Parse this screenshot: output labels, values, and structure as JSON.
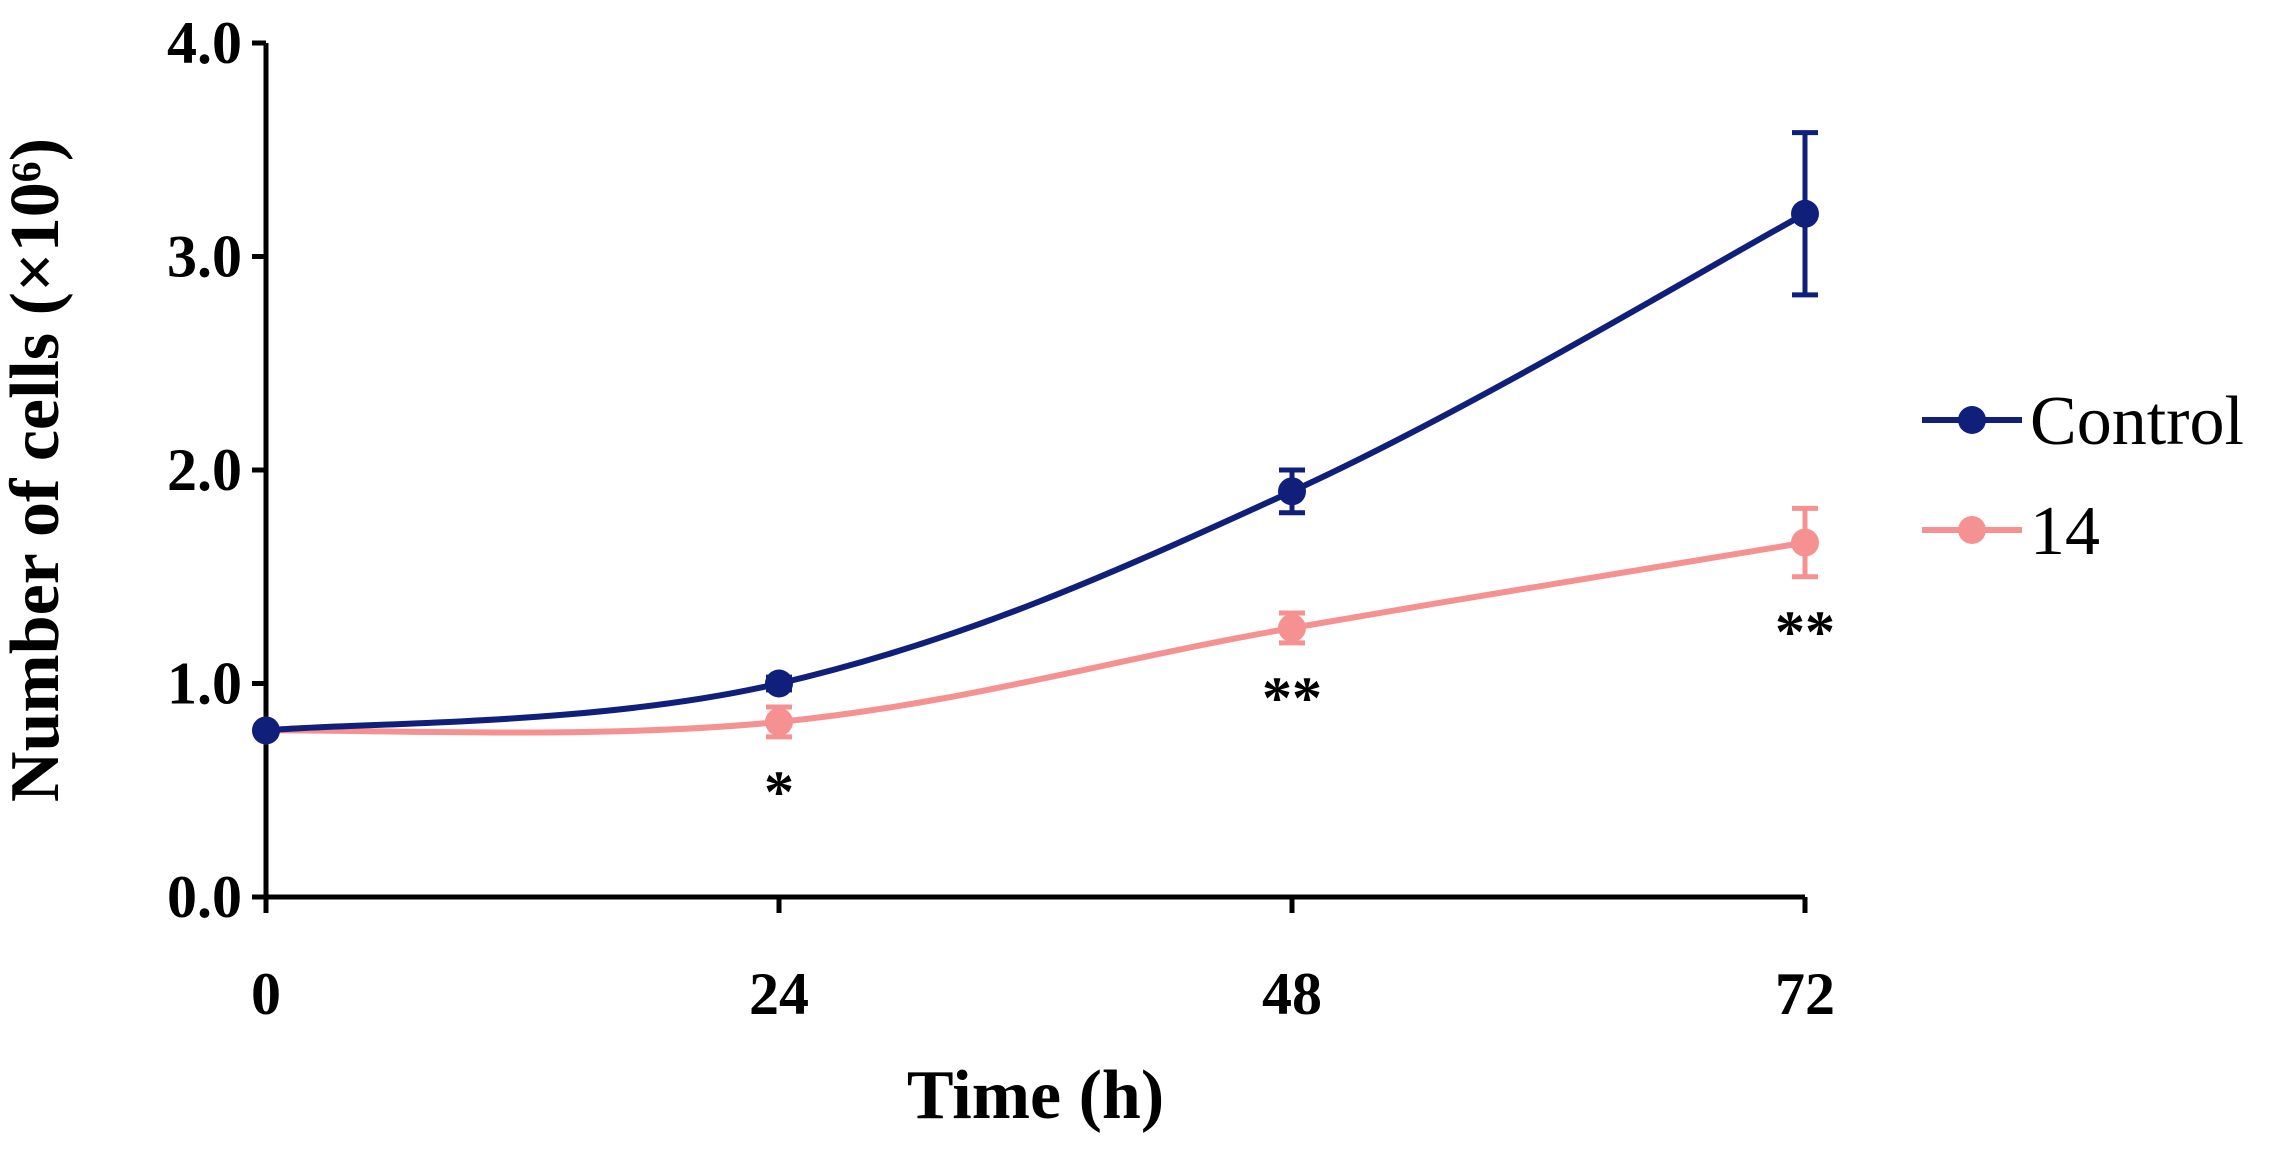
{
  "chart_data": {
    "type": "line",
    "title": "",
    "xlabel": "Time (h)",
    "ylabel": "Number of cells (×10⁶)",
    "x": [
      0,
      24,
      48,
      72
    ],
    "x_tick_labels": [
      "0",
      "24",
      "48",
      "72"
    ],
    "xlim": [
      0,
      72
    ],
    "ylim": [
      0,
      4
    ],
    "y_ticks": [
      0,
      1,
      2,
      3,
      4
    ],
    "y_tick_labels": [
      "0.0",
      "1.0",
      "2.0",
      "3.0",
      "4.0"
    ],
    "grid": false,
    "legend_position": "right",
    "series": [
      {
        "name": "Control",
        "color": "#0f1f7a",
        "values": [
          0.78,
          1.0,
          1.9,
          3.2
        ],
        "errors": [
          0.0,
          0.03,
          0.1,
          0.38
        ]
      },
      {
        "name": "14",
        "color": "#f59191",
        "values": [
          0.78,
          0.82,
          1.26,
          1.66
        ],
        "errors": [
          0.0,
          0.07,
          0.07,
          0.16
        ]
      }
    ],
    "annotations": [
      {
        "x": 24,
        "text": "*"
      },
      {
        "x": 48,
        "text": "**"
      },
      {
        "x": 72,
        "text": "**"
      }
    ]
  }
}
